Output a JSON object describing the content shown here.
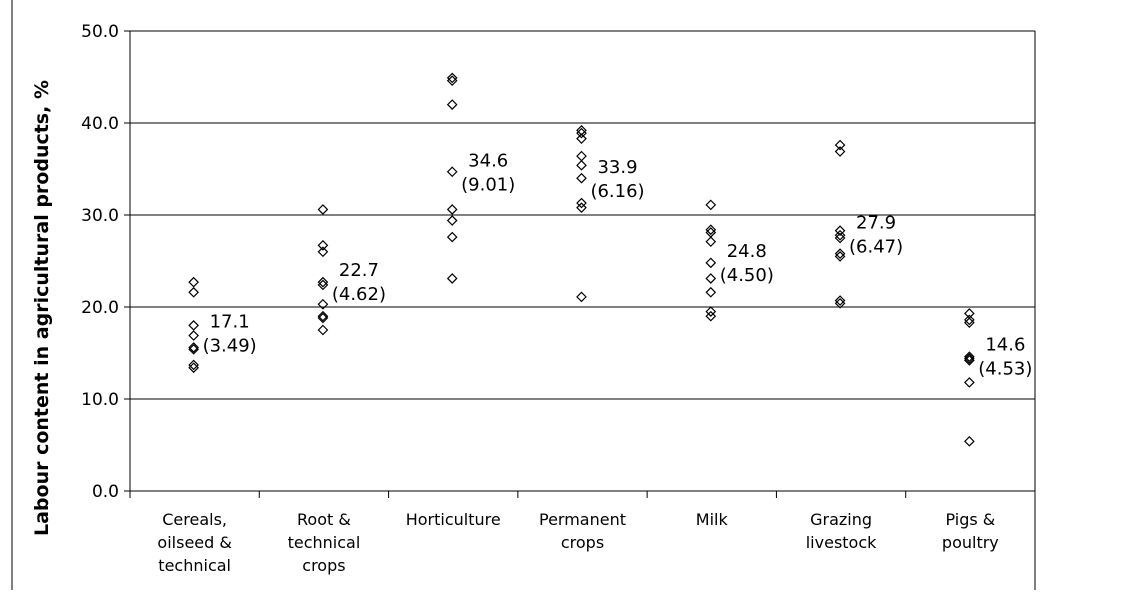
{
  "chart_data": {
    "type": "scatter",
    "title": "",
    "xlabel": "",
    "ylabel": "Labour content in agricultural products, %",
    "ylim": [
      0,
      50
    ],
    "yticks": [
      "0.0",
      "10.0",
      "20.0",
      "30.0",
      "40.0",
      "50.0"
    ],
    "grid": true,
    "marker": "diamond",
    "colors": {
      "marker": "#000000",
      "grid": "#000000",
      "background": "#ffffff"
    },
    "categories": [
      {
        "label_lines": [
          "Cereals,",
          "oilseed &",
          "technical"
        ],
        "values": [
          22.7,
          21.6,
          18.0,
          16.9,
          15.6,
          15.4,
          13.7,
          13.4
        ],
        "annotation": [
          "17.1",
          "(3.49)"
        ]
      },
      {
        "label_lines": [
          "Root &",
          "technical",
          "crops"
        ],
        "values": [
          30.6,
          26.7,
          26.0,
          22.7,
          22.4,
          20.3,
          19.0,
          18.8,
          17.5
        ],
        "annotation": [
          "22.7",
          "(4.62)"
        ]
      },
      {
        "label_lines": [
          "Horticulture"
        ],
        "values": [
          44.9,
          44.6,
          42.0,
          34.7,
          30.6,
          29.4,
          27.6,
          23.1
        ],
        "annotation": [
          "34.6",
          "(9.01)"
        ]
      },
      {
        "label_lines": [
          "Permanent",
          "crops"
        ],
        "values": [
          39.2,
          38.9,
          38.3,
          36.4,
          35.4,
          34.0,
          31.3,
          30.8,
          21.1
        ],
        "annotation": [
          "33.9",
          "(6.16)"
        ]
      },
      {
        "label_lines": [
          "Milk"
        ],
        "values": [
          31.1,
          28.4,
          28.1,
          27.1,
          24.8,
          23.1,
          21.6,
          19.5,
          19.0
        ],
        "annotation": [
          "24.8",
          "(4.50)"
        ]
      },
      {
        "label_lines": [
          "Grazing",
          "livestock"
        ],
        "values": [
          37.6,
          36.9,
          28.3,
          27.8,
          27.5,
          25.8,
          25.5,
          20.7,
          20.4
        ],
        "annotation": [
          "27.9",
          "(6.47)"
        ]
      },
      {
        "label_lines": [
          "Pigs &",
          "poultry"
        ],
        "values": [
          19.3,
          18.6,
          18.3,
          14.6,
          14.4,
          14.2,
          11.8,
          5.4
        ],
        "annotation": [
          "14.6",
          "(4.53)"
        ]
      }
    ]
  }
}
